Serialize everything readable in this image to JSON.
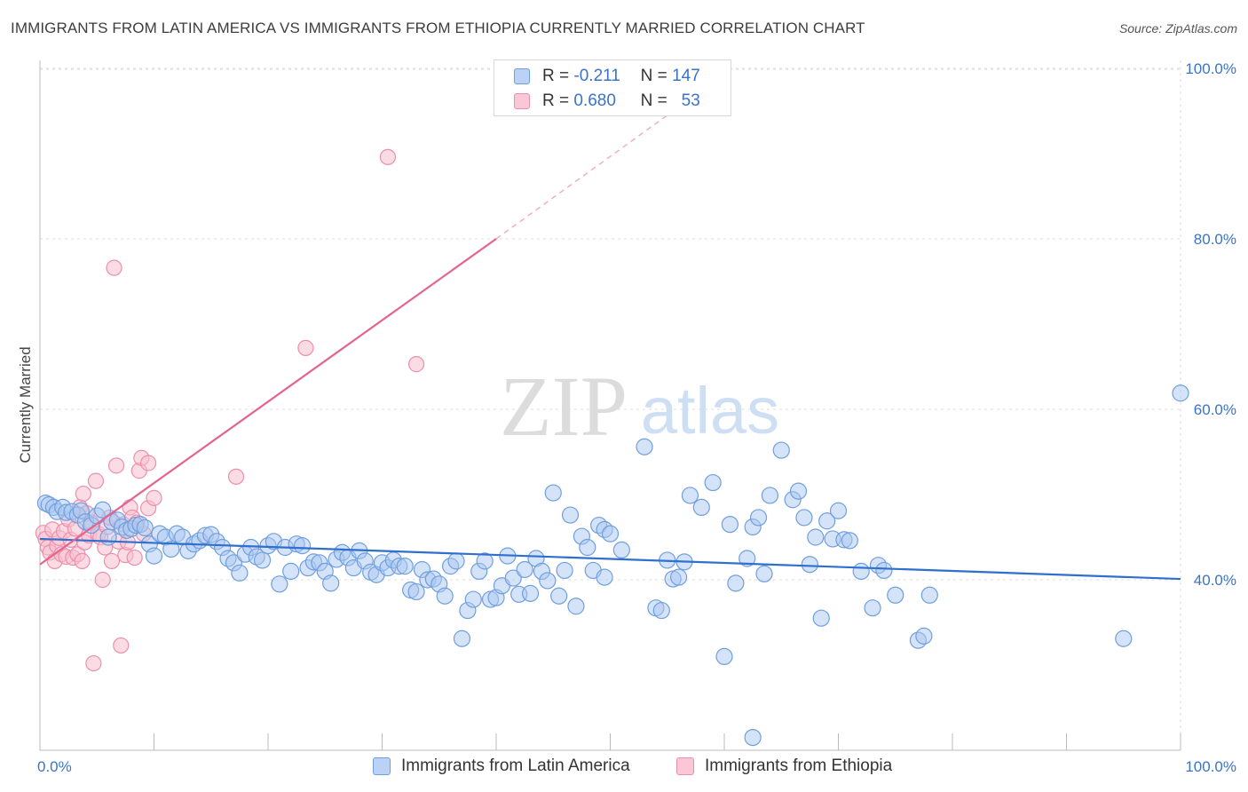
{
  "header": {
    "title": "IMMIGRANTS FROM LATIN AMERICA VS IMMIGRANTS FROM ETHIOPIA CURRENTLY MARRIED CORRELATION CHART",
    "source": "Source: ZipAtlas.com"
  },
  "watermark": {
    "zip": "ZIP",
    "atlas": "atlas"
  },
  "legend": {
    "r_label": "R =",
    "n_label": "N =",
    "blue": {
      "r": "-0.211",
      "n": "147"
    },
    "pink": {
      "r": "0.680",
      "n": "53"
    }
  },
  "colors": {
    "blue_fill": "#a9c8f0",
    "blue_stroke": "#6f9fe0",
    "blue_line": "#2f6fcf",
    "pink_fill": "#f8c0d0",
    "pink_stroke": "#ec8fad",
    "pink_line": "#e4648f"
  },
  "chart_data": {
    "type": "scatter",
    "title": "IMMIGRANTS FROM LATIN AMERICA VS IMMIGRANTS FROM ETHIOPIA CURRENTLY MARRIED CORRELATION CHART",
    "xlabel": "",
    "ylabel": "Currently Married",
    "xlim": [
      0,
      100
    ],
    "ylim": [
      20,
      102
    ],
    "x_tick_labels": [
      "0.0%",
      "100.0%"
    ],
    "y_ticks": [
      40,
      60,
      80,
      100
    ],
    "y_tick_labels": [
      "40.0%",
      "60.0%",
      "80.0%",
      "100.0%"
    ],
    "grid": true,
    "legend_position": "top-center",
    "series": [
      {
        "name": "Immigrants from Latin America",
        "color": "#6f9fe0",
        "trend": {
          "x": [
            0,
            100
          ],
          "y": [
            44.8,
            40.1
          ]
        },
        "points": [
          [
            0.5,
            49.0
          ],
          [
            0.8,
            48.8
          ],
          [
            1.2,
            48.5
          ],
          [
            1.5,
            48.0
          ],
          [
            2.0,
            48.5
          ],
          [
            2.3,
            47.9
          ],
          [
            2.8,
            48.0
          ],
          [
            3.3,
            47.6
          ],
          [
            3.6,
            48.1
          ],
          [
            4.0,
            46.8
          ],
          [
            4.5,
            46.4
          ],
          [
            5.0,
            47.5
          ],
          [
            5.5,
            48.2
          ],
          [
            6.0,
            45.0
          ],
          [
            6.3,
            46.8
          ],
          [
            6.8,
            47.0
          ],
          [
            7.2,
            46.2
          ],
          [
            7.6,
            45.8
          ],
          [
            8.0,
            46.0
          ],
          [
            8.4,
            46.4
          ],
          [
            8.8,
            46.5
          ],
          [
            9.2,
            46.1
          ],
          [
            9.6,
            44.2
          ],
          [
            10.0,
            42.8
          ],
          [
            10.5,
            45.4
          ],
          [
            11.0,
            45.0
          ],
          [
            11.5,
            43.6
          ],
          [
            12.0,
            45.4
          ],
          [
            12.5,
            45.0
          ],
          [
            13.0,
            43.4
          ],
          [
            13.5,
            44.2
          ],
          [
            14.0,
            44.6
          ],
          [
            14.5,
            45.2
          ],
          [
            15.0,
            45.3
          ],
          [
            15.5,
            44.5
          ],
          [
            16.0,
            43.8
          ],
          [
            16.5,
            42.5
          ],
          [
            17.0,
            42.0
          ],
          [
            17.5,
            40.8
          ],
          [
            18.0,
            43.0
          ],
          [
            18.5,
            43.8
          ],
          [
            19.0,
            42.7
          ],
          [
            19.5,
            42.3
          ],
          [
            20.0,
            44.0
          ],
          [
            20.5,
            44.5
          ],
          [
            21.0,
            39.5
          ],
          [
            21.5,
            43.8
          ],
          [
            22.0,
            41.0
          ],
          [
            22.5,
            44.2
          ],
          [
            23.0,
            44.0
          ],
          [
            23.5,
            41.4
          ],
          [
            24.0,
            42.1
          ],
          [
            24.5,
            42.0
          ],
          [
            25.0,
            41.0
          ],
          [
            25.5,
            39.6
          ],
          [
            26.0,
            42.4
          ],
          [
            26.5,
            43.2
          ],
          [
            27.0,
            42.6
          ],
          [
            27.5,
            41.4
          ],
          [
            28.0,
            43.4
          ],
          [
            28.5,
            42.2
          ],
          [
            29.0,
            40.9
          ],
          [
            29.5,
            40.6
          ],
          [
            30.0,
            42.0
          ],
          [
            30.5,
            41.4
          ],
          [
            31.0,
            42.3
          ],
          [
            31.5,
            41.6
          ],
          [
            32.0,
            41.6
          ],
          [
            32.5,
            38.8
          ],
          [
            33.0,
            38.6
          ],
          [
            33.5,
            41.2
          ],
          [
            34.0,
            40.0
          ],
          [
            34.5,
            40.1
          ],
          [
            35.0,
            39.5
          ],
          [
            35.5,
            38.1
          ],
          [
            36.0,
            41.6
          ],
          [
            36.5,
            42.2
          ],
          [
            37.0,
            33.1
          ],
          [
            37.5,
            36.4
          ],
          [
            38.0,
            37.7
          ],
          [
            38.5,
            41.0
          ],
          [
            39.0,
            42.2
          ],
          [
            39.5,
            37.7
          ],
          [
            40.0,
            37.9
          ],
          [
            40.5,
            39.3
          ],
          [
            41.0,
            42.8
          ],
          [
            41.5,
            40.2
          ],
          [
            42.0,
            38.3
          ],
          [
            42.5,
            41.2
          ],
          [
            43.0,
            38.4
          ],
          [
            43.5,
            42.5
          ],
          [
            44.0,
            41.0
          ],
          [
            44.5,
            39.9
          ],
          [
            45.0,
            50.2
          ],
          [
            45.5,
            38.1
          ],
          [
            46.0,
            41.1
          ],
          [
            46.5,
            47.6
          ],
          [
            47.0,
            36.9
          ],
          [
            47.5,
            45.1
          ],
          [
            48.0,
            43.8
          ],
          [
            48.5,
            41.1
          ],
          [
            49.0,
            46.4
          ],
          [
            49.5,
            45.9
          ],
          [
            50.0,
            45.4
          ],
          [
            53.0,
            55.6
          ],
          [
            54.0,
            36.7
          ],
          [
            54.5,
            36.4
          ],
          [
            55.0,
            42.3
          ],
          [
            55.5,
            40.1
          ],
          [
            56.0,
            40.3
          ],
          [
            56.5,
            42.1
          ],
          [
            57.0,
            49.9
          ],
          [
            58.0,
            48.5
          ],
          [
            59.0,
            51.4
          ],
          [
            60.0,
            31.0
          ],
          [
            60.5,
            46.5
          ],
          [
            61.0,
            39.6
          ],
          [
            62.0,
            42.5
          ],
          [
            62.5,
            46.2
          ],
          [
            63.0,
            47.3
          ],
          [
            63.5,
            40.7
          ],
          [
            64.0,
            49.9
          ],
          [
            65.0,
            55.2
          ],
          [
            66.0,
            49.4
          ],
          [
            66.5,
            50.4
          ],
          [
            67.0,
            47.3
          ],
          [
            67.5,
            41.8
          ],
          [
            68.0,
            45.0
          ],
          [
            68.5,
            35.5
          ],
          [
            69.0,
            46.9
          ],
          [
            69.5,
            44.8
          ],
          [
            70.0,
            48.1
          ],
          [
            70.5,
            44.7
          ],
          [
            71.0,
            44.6
          ],
          [
            72.0,
            41.0
          ],
          [
            73.0,
            36.7
          ],
          [
            73.5,
            41.7
          ],
          [
            74.0,
            41.1
          ],
          [
            75.0,
            38.2
          ],
          [
            77.0,
            32.9
          ],
          [
            77.5,
            33.4
          ],
          [
            78.0,
            38.2
          ],
          [
            62.5,
            21.5
          ],
          [
            95.0,
            33.1
          ],
          [
            100.0,
            61.9
          ],
          [
            49.5,
            40.3
          ],
          [
            51.0,
            43.5
          ]
        ]
      },
      {
        "name": "Immigrants from Ethiopia",
        "color": "#ec8fad",
        "trend": {
          "x": [
            0,
            40
          ],
          "y": [
            41.8,
            80.0
          ]
        },
        "trend_dashed": {
          "x": [
            40,
            55
          ],
          "y": [
            80.0,
            94.5
          ]
        },
        "points": [
          [
            0.3,
            45.5
          ],
          [
            0.5,
            44.8
          ],
          [
            0.7,
            43.8
          ],
          [
            0.9,
            43.2
          ],
          [
            1.1,
            45.9
          ],
          [
            1.3,
            42.2
          ],
          [
            1.5,
            44.0
          ],
          [
            1.7,
            44.9
          ],
          [
            1.9,
            43.0
          ],
          [
            2.1,
            45.7
          ],
          [
            2.3,
            42.7
          ],
          [
            2.5,
            47.1
          ],
          [
            2.7,
            44.7
          ],
          [
            2.9,
            42.6
          ],
          [
            3.1,
            46.0
          ],
          [
            3.3,
            43.0
          ],
          [
            3.5,
            48.5
          ],
          [
            3.7,
            42.2
          ],
          [
            3.9,
            44.4
          ],
          [
            4.1,
            47.8
          ],
          [
            4.3,
            45.2
          ],
          [
            4.5,
            46.7
          ],
          [
            4.7,
            30.2
          ],
          [
            4.9,
            51.6
          ],
          [
            5.1,
            45.4
          ],
          [
            5.3,
            45.0
          ],
          [
            5.5,
            40.0
          ],
          [
            5.7,
            43.8
          ],
          [
            5.9,
            46.2
          ],
          [
            6.1,
            47.3
          ],
          [
            6.3,
            42.2
          ],
          [
            6.5,
            76.6
          ],
          [
            6.7,
            53.4
          ],
          [
            6.9,
            44.5
          ],
          [
            7.1,
            32.3
          ],
          [
            7.3,
            46.5
          ],
          [
            7.5,
            42.9
          ],
          [
            7.7,
            44.4
          ],
          [
            7.9,
            48.5
          ],
          [
            8.1,
            47.3
          ],
          [
            8.3,
            42.6
          ],
          [
            8.5,
            46.7
          ],
          [
            8.7,
            52.8
          ],
          [
            8.9,
            54.3
          ],
          [
            9.1,
            45.4
          ],
          [
            9.5,
            48.4
          ],
          [
            10.0,
            49.6
          ],
          [
            3.8,
            50.1
          ],
          [
            17.2,
            52.1
          ],
          [
            23.3,
            67.2
          ],
          [
            30.5,
            89.6
          ],
          [
            33.0,
            65.3
          ],
          [
            9.5,
            53.7
          ]
        ]
      }
    ]
  },
  "bottom_legend": {
    "blue_label": "Immigrants from Latin America",
    "pink_label": "Immigrants from Ethiopia"
  }
}
